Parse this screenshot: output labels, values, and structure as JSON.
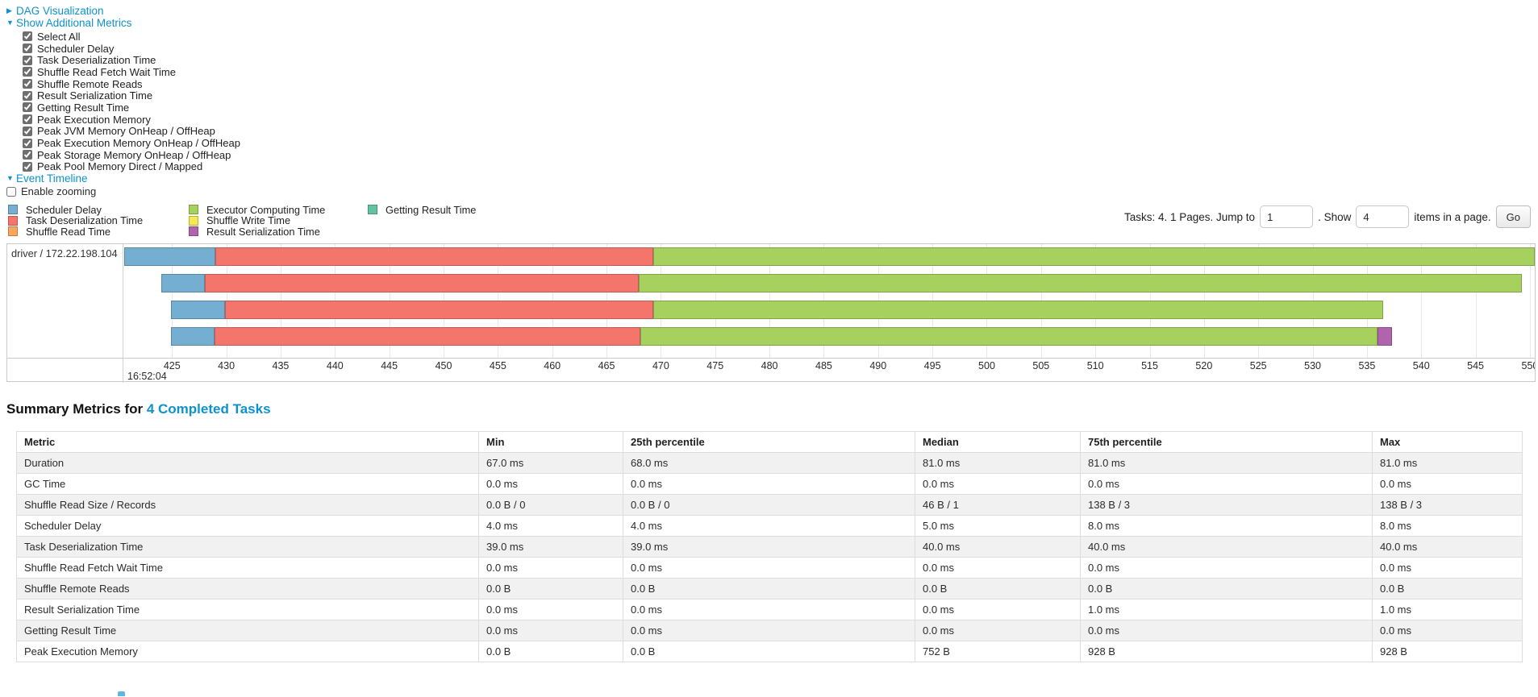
{
  "sections": {
    "dag": "DAG Visualization",
    "metrics": "Show Additional Metrics",
    "timeline": "Event Timeline"
  },
  "metric_checkboxes": [
    "Select All",
    "Scheduler Delay",
    "Task Deserialization Time",
    "Shuffle Read Fetch Wait Time",
    "Shuffle Remote Reads",
    "Result Serialization Time",
    "Getting Result Time",
    "Peak Execution Memory",
    "Peak JVM Memory OnHeap / OffHeap",
    "Peak Execution Memory OnHeap / OffHeap",
    "Peak Storage Memory OnHeap / OffHeap",
    "Peak Pool Memory Direct / Mapped"
  ],
  "enable_zooming_label": "Enable zooming",
  "legend": {
    "columns": [
      [
        {
          "label": "Scheduler Delay",
          "color": "#74afd1"
        },
        {
          "label": "Task Deserialization Time",
          "color": "#f4756c"
        },
        {
          "label": "Shuffle Read Time",
          "color": "#fca75e"
        }
      ],
      [
        {
          "label": "Executor Computing Time",
          "color": "#a7d15e"
        },
        {
          "label": "Shuffle Write Time",
          "color": "#f5e956"
        },
        {
          "label": "Result Serialization Time",
          "color": "#b164ac"
        }
      ],
      [
        {
          "label": "Getting Result Time",
          "color": "#62c2a2"
        }
      ]
    ]
  },
  "pagination": {
    "tasks_text": "Tasks: 4. 1 Pages. Jump to",
    "jump_value": "1",
    "show_text": ". Show",
    "show_value": "4",
    "items_text": "items in a page.",
    "go_label": "Go"
  },
  "chart_data": {
    "type": "timeline-gantt",
    "executor_label": "driver / 172.22.198.104",
    "time_second_label": "16:52:04",
    "axis": {
      "min_ms": 420.6,
      "max_ms": 550.45,
      "tick_start": 425,
      "tick_end": 550,
      "tick_step": 5
    },
    "tasks": [
      {
        "segments": [
          {
            "metric": "Scheduler Delay",
            "from": 420.6,
            "to": 429.0
          },
          {
            "metric": "Task Deserialization Time",
            "from": 429.0,
            "to": 469.3
          },
          {
            "metric": "Executor Computing Time",
            "from": 469.3,
            "to": 550.45
          }
        ]
      },
      {
        "segments": [
          {
            "metric": "Scheduler Delay",
            "from": 424.0,
            "to": 428.0
          },
          {
            "metric": "Task Deserialization Time",
            "from": 428.0,
            "to": 468.0
          },
          {
            "metric": "Executor Computing Time",
            "from": 468.0,
            "to": 549.3
          }
        ]
      },
      {
        "segments": [
          {
            "metric": "Scheduler Delay",
            "from": 424.9,
            "to": 429.9
          },
          {
            "metric": "Task Deserialization Time",
            "from": 429.9,
            "to": 469.3
          },
          {
            "metric": "Executor Computing Time",
            "from": 469.3,
            "to": 536.5
          }
        ]
      },
      {
        "segments": [
          {
            "metric": "Scheduler Delay",
            "from": 424.9,
            "to": 428.9
          },
          {
            "metric": "Task Deserialization Time",
            "from": 428.9,
            "to": 468.1
          },
          {
            "metric": "Executor Computing Time",
            "from": 468.1,
            "to": 536.0
          },
          {
            "metric": "Result Serialization Time",
            "from": 536.0,
            "to": 537.3
          }
        ]
      }
    ]
  },
  "summary": {
    "title_prefix": "Summary Metrics for ",
    "title_link": "4 Completed Tasks",
    "columns": [
      "Metric",
      "Min",
      "25th percentile",
      "Median",
      "75th percentile",
      "Max"
    ],
    "rows": [
      [
        "Duration",
        "67.0 ms",
        "68.0 ms",
        "81.0 ms",
        "81.0 ms",
        "81.0 ms"
      ],
      [
        "GC Time",
        "0.0 ms",
        "0.0 ms",
        "0.0 ms",
        "0.0 ms",
        "0.0 ms"
      ],
      [
        "Shuffle Read Size / Records",
        "0.0 B / 0",
        "0.0 B / 0",
        "46 B / 1",
        "138 B / 3",
        "138 B / 3"
      ],
      [
        "Scheduler Delay",
        "4.0 ms",
        "4.0 ms",
        "5.0 ms",
        "8.0 ms",
        "8.0 ms"
      ],
      [
        "Task Deserialization Time",
        "39.0 ms",
        "39.0 ms",
        "40.0 ms",
        "40.0 ms",
        "40.0 ms"
      ],
      [
        "Shuffle Read Fetch Wait Time",
        "0.0 ms",
        "0.0 ms",
        "0.0 ms",
        "0.0 ms",
        "0.0 ms"
      ],
      [
        "Shuffle Remote Reads",
        "0.0 B",
        "0.0 B",
        "0.0 B",
        "0.0 B",
        "0.0 B"
      ],
      [
        "Result Serialization Time",
        "0.0 ms",
        "0.0 ms",
        "0.0 ms",
        "1.0 ms",
        "1.0 ms"
      ],
      [
        "Getting Result Time",
        "0.0 ms",
        "0.0 ms",
        "0.0 ms",
        "0.0 ms",
        "0.0 ms"
      ],
      [
        "Peak Execution Memory",
        "0.0 B",
        "0.0 B",
        "752 B",
        "928 B",
        "928 B"
      ]
    ]
  },
  "colors": {
    "link_blue": "#0e92cf",
    "grid_line": "#e8e8e8",
    "box_border": "#c9c9c9",
    "table_stripe": "#f1f1f2"
  }
}
